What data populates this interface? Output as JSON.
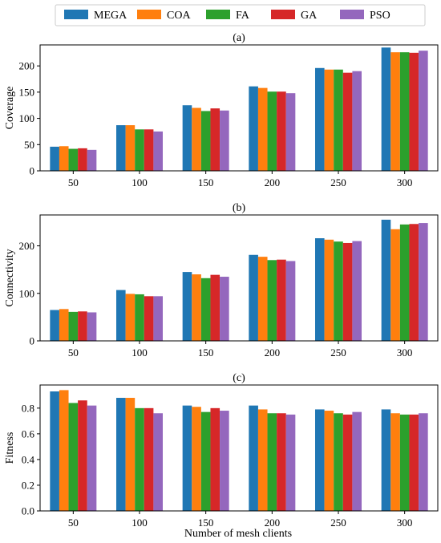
{
  "legend": {
    "placement": "top-center",
    "entries": [
      {
        "name": "MEGA",
        "color": "#1f77b4"
      },
      {
        "name": "COA",
        "color": "#ff7f0e"
      },
      {
        "name": "FA",
        "color": "#2ca02c"
      },
      {
        "name": "GA",
        "color": "#d62728"
      },
      {
        "name": "PSO",
        "color": "#9467bd"
      }
    ]
  },
  "xlabel": "Number of mesh clients",
  "chart_data": [
    {
      "type": "bar",
      "title": "(a)",
      "ylabel": "Coverage",
      "categories": [
        "50",
        "100",
        "150",
        "200",
        "250",
        "300"
      ],
      "ylim": [
        0,
        240
      ],
      "yticks": [
        "0",
        "50",
        "100",
        "150",
        "200"
      ],
      "ytick_values": [
        0,
        50,
        100,
        150,
        200
      ],
      "series": [
        {
          "name": "MEGA",
          "values": [
            46,
            87,
            125,
            161,
            196,
            235
          ]
        },
        {
          "name": "COA",
          "values": [
            47,
            87,
            120,
            158,
            193,
            226
          ]
        },
        {
          "name": "FA",
          "values": [
            42,
            79,
            114,
            151,
            193,
            226
          ]
        },
        {
          "name": "GA",
          "values": [
            43,
            79,
            119,
            151,
            187,
            225
          ]
        },
        {
          "name": "PSO",
          "values": [
            40,
            75,
            115,
            148,
            190,
            229
          ]
        }
      ]
    },
    {
      "type": "bar",
      "title": "(b)",
      "ylabel": "Connectivity",
      "categories": [
        "50",
        "100",
        "150",
        "200",
        "250",
        "300"
      ],
      "ylim": [
        0,
        265
      ],
      "yticks": [
        "0",
        "100",
        "200"
      ],
      "ytick_values": [
        0,
        100,
        200
      ],
      "series": [
        {
          "name": "MEGA",
          "values": [
            65,
            107,
            145,
            181,
            216,
            255
          ]
        },
        {
          "name": "COA",
          "values": [
            67,
            99,
            140,
            177,
            213,
            235
          ]
        },
        {
          "name": "FA",
          "values": [
            61,
            98,
            132,
            170,
            209,
            245
          ]
        },
        {
          "name": "GA",
          "values": [
            62,
            94,
            139,
            171,
            206,
            246
          ]
        },
        {
          "name": "PSO",
          "values": [
            60,
            94,
            135,
            168,
            210,
            248
          ]
        }
      ]
    },
    {
      "type": "bar",
      "title": "(c)",
      "ylabel": "Fitness",
      "categories": [
        "50",
        "100",
        "150",
        "200",
        "250",
        "300"
      ],
      "ylim": [
        0,
        0.98
      ],
      "yticks": [
        "0.0",
        "0.2",
        "0.4",
        "0.6",
        "0.8"
      ],
      "ytick_values": [
        0,
        0.2,
        0.4,
        0.6,
        0.8
      ],
      "series": [
        {
          "name": "MEGA",
          "values": [
            0.93,
            0.88,
            0.82,
            0.82,
            0.79,
            0.79
          ]
        },
        {
          "name": "COA",
          "values": [
            0.94,
            0.88,
            0.81,
            0.79,
            0.78,
            0.76
          ]
        },
        {
          "name": "FA",
          "values": [
            0.84,
            0.8,
            0.77,
            0.76,
            0.76,
            0.75
          ]
        },
        {
          "name": "GA",
          "values": [
            0.86,
            0.8,
            0.8,
            0.76,
            0.75,
            0.75
          ]
        },
        {
          "name": "PSO",
          "values": [
            0.82,
            0.76,
            0.78,
            0.75,
            0.77,
            0.76
          ]
        }
      ]
    }
  ]
}
